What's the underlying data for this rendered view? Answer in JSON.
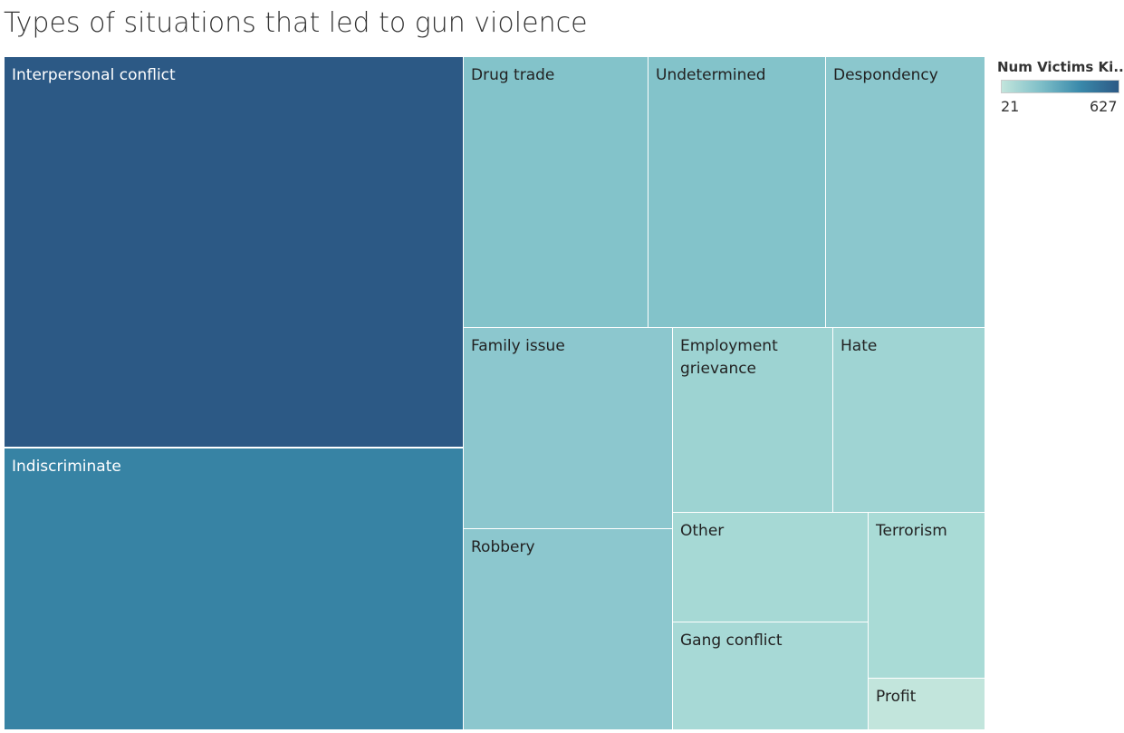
{
  "chart_data": {
    "type": "treemap",
    "title": "Types of situations that led to gun violence",
    "color_legend": {
      "title": "Num Victims Ki..",
      "min": 21,
      "max": 627,
      "min_label": "21",
      "max_label": "627",
      "color_low": "#c2e5dc",
      "color_high": "#2c5985"
    },
    "tiles": [
      {
        "label": "Interpersonal conflict",
        "value": 627,
        "color": "#2c5985",
        "text_color": "#ffffff"
      },
      {
        "label": "Indiscriminate",
        "value": 420,
        "color": "#3783a4",
        "text_color": "#ffffff"
      },
      {
        "label": "Drug trade",
        "value": 180,
        "color": "#83c3ca",
        "text_color": "#222222"
      },
      {
        "label": "Undetermined",
        "value": 172,
        "color": "#83c3ca",
        "text_color": "#222222"
      },
      {
        "label": "Despondency",
        "value": 155,
        "color": "#8bc7cd",
        "text_color": "#222222"
      },
      {
        "label": "Family issue",
        "value": 150,
        "color": "#8cc7ce",
        "text_color": "#222222"
      },
      {
        "label": "Robbery",
        "value": 150,
        "color": "#8cc7ce",
        "text_color": "#222222"
      },
      {
        "label": "Employment\ngrievance",
        "value": 100,
        "color": "#9dd3d2",
        "text_color": "#222222"
      },
      {
        "label": "Hate",
        "value": 95,
        "color": "#9fd4d3",
        "text_color": "#222222"
      },
      {
        "label": "Other",
        "value": 70,
        "color": "#a6d9d5",
        "text_color": "#222222"
      },
      {
        "label": "Gang conflict",
        "value": 65,
        "color": "#a7d9d6",
        "text_color": "#222222"
      },
      {
        "label": "Terrorism",
        "value": 62,
        "color": "#a9dbd6",
        "text_color": "#222222"
      },
      {
        "label": "Profit",
        "value": 21,
        "color": "#c2e5dc",
        "text_color": "#222222"
      }
    ]
  }
}
